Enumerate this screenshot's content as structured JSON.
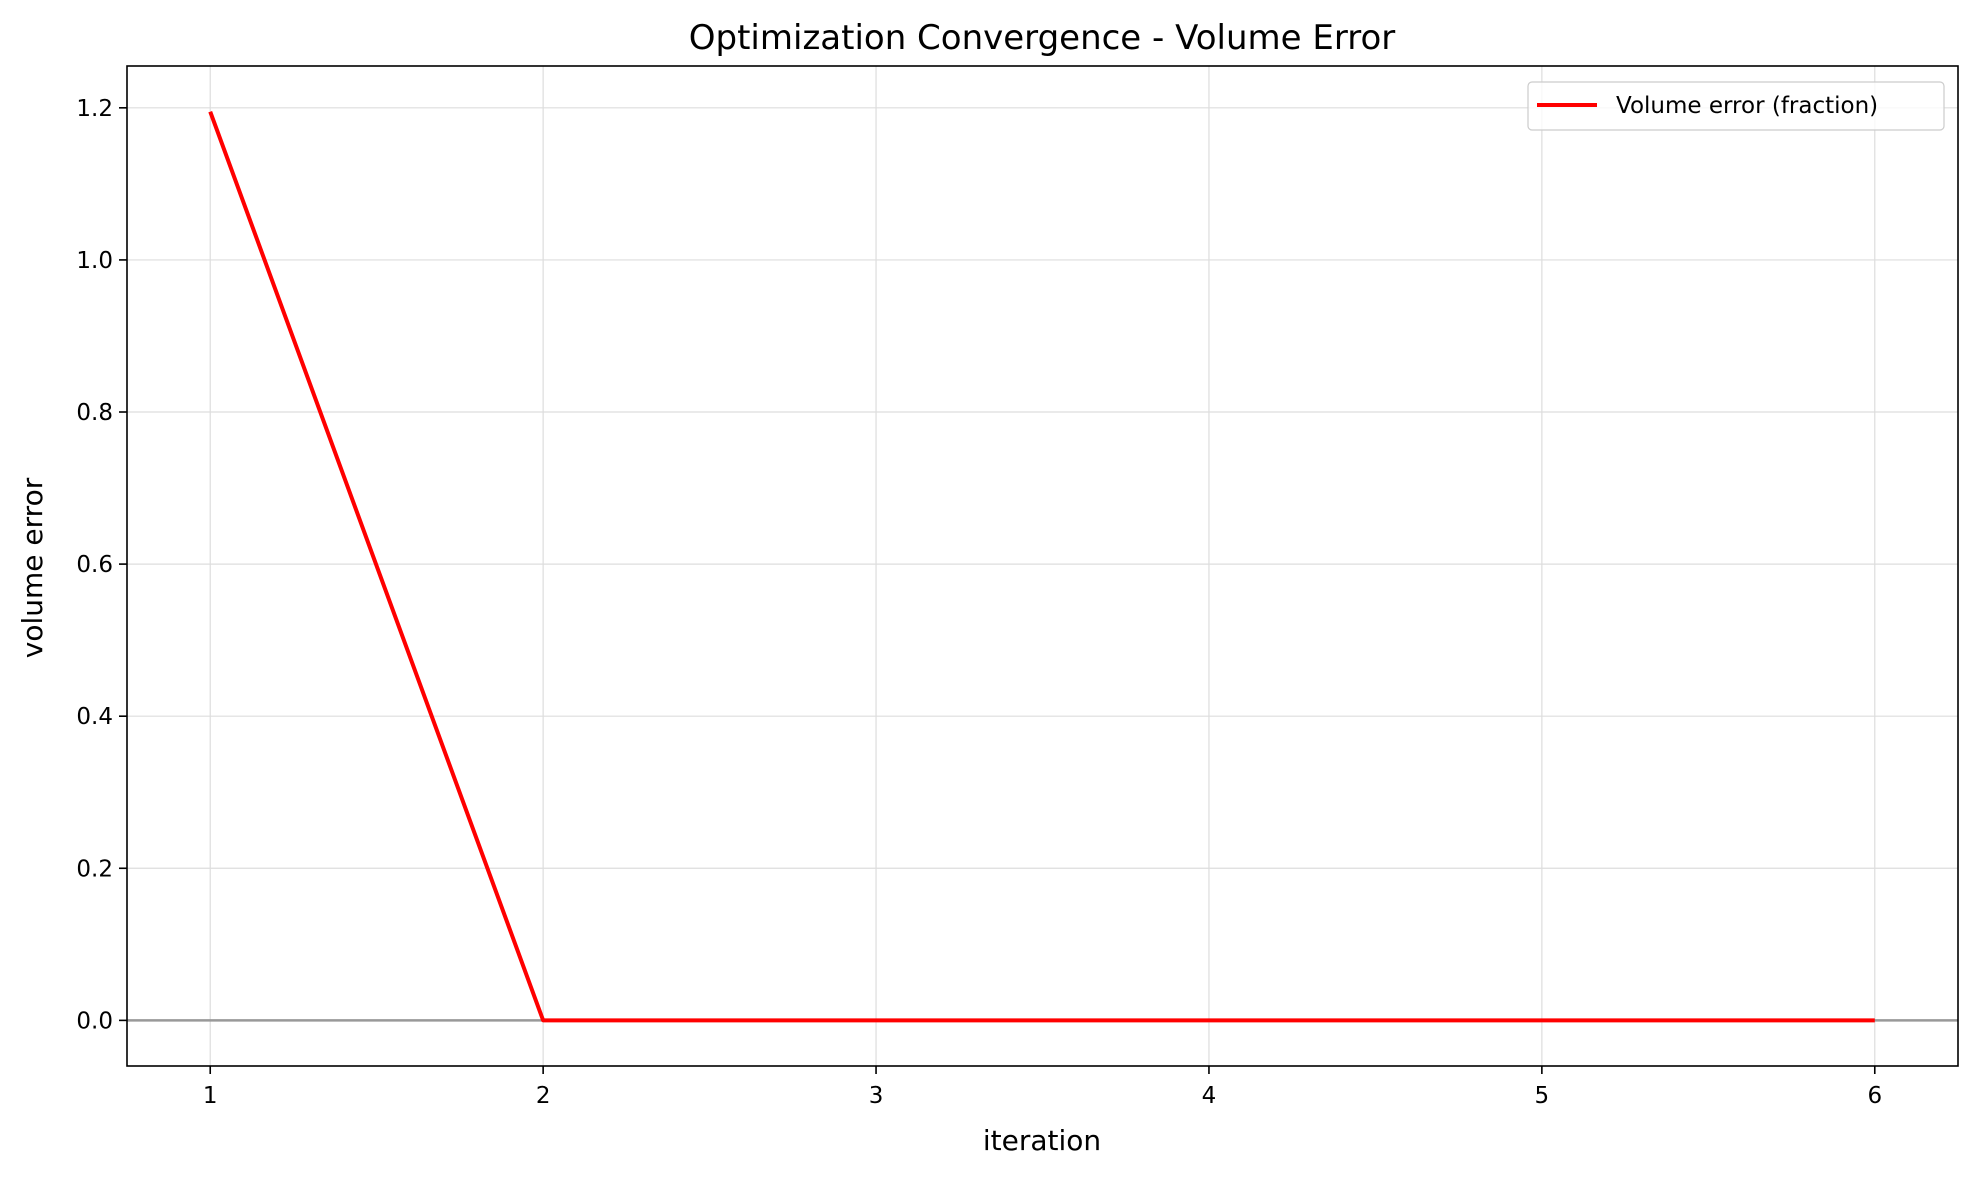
{
  "chart_data": {
    "type": "line",
    "title": "Optimization Convergence - Volume Error",
    "xlabel": "iteration",
    "ylabel": "volume error",
    "x": [
      1,
      2,
      3,
      4,
      5,
      6
    ],
    "series": [
      {
        "name": "Volume error (fraction)",
        "color": "#ff0000",
        "values": [
          1.195,
          0.0,
          0.0,
          0.0,
          0.0,
          0.0
        ]
      }
    ],
    "reference_line": {
      "y": 0.0,
      "color": "#999999"
    },
    "xlim": [
      0.75,
      6.25
    ],
    "ylim": [
      -0.06,
      1.255
    ],
    "xticks": [
      1,
      2,
      3,
      4,
      5,
      6
    ],
    "yticks": [
      0.0,
      0.2,
      0.4,
      0.6,
      0.8,
      1.0,
      1.2
    ],
    "ytick_labels": [
      "0.0",
      "0.2",
      "0.4",
      "0.6",
      "0.8",
      "1.0",
      "1.2"
    ],
    "grid": true,
    "legend_position": "top-right"
  }
}
